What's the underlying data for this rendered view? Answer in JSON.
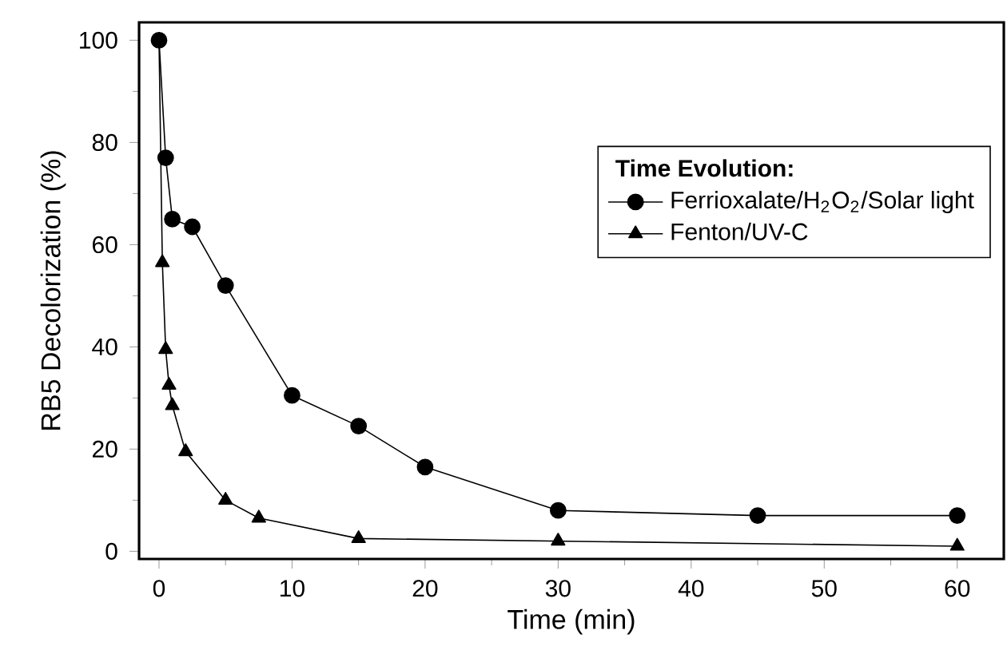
{
  "chart_data": {
    "type": "line",
    "xlabel": "Time (min)",
    "ylabel": "RB5 Decolorization (%)",
    "legend_title": "Time Evolution:",
    "series": [
      {
        "name": "Ferrioxalate/H$_{2}$O$_{2}$/Solar light",
        "color": "#000000",
        "marker": "circle",
        "x": [
          0,
          0.5,
          1,
          2.5,
          5,
          10,
          15,
          20,
          30,
          45,
          60
        ],
        "values": [
          100,
          77,
          65,
          63.5,
          52,
          30.5,
          24.5,
          16.5,
          8,
          7,
          7
        ]
      },
      {
        "name": "Fenton/UV-C",
        "color": "#000000",
        "marker": "triangle",
        "x": [
          0,
          0.25,
          0.5,
          0.75,
          1,
          2,
          5,
          7.5,
          15,
          30,
          60
        ],
        "values": [
          100,
          56.5,
          39.5,
          32.5,
          28.5,
          19.5,
          10,
          6.5,
          2.5,
          2,
          1
        ]
      }
    ],
    "xlim": [
      -1.5,
      63.5
    ],
    "ylim": [
      -1.5,
      103.5
    ],
    "xticks": [
      0,
      10,
      20,
      30,
      40,
      50,
      60
    ],
    "yticks": [
      0,
      20,
      40,
      60,
      80,
      100
    ],
    "grid": false,
    "legend": "right",
    "line_style": "solid"
  }
}
